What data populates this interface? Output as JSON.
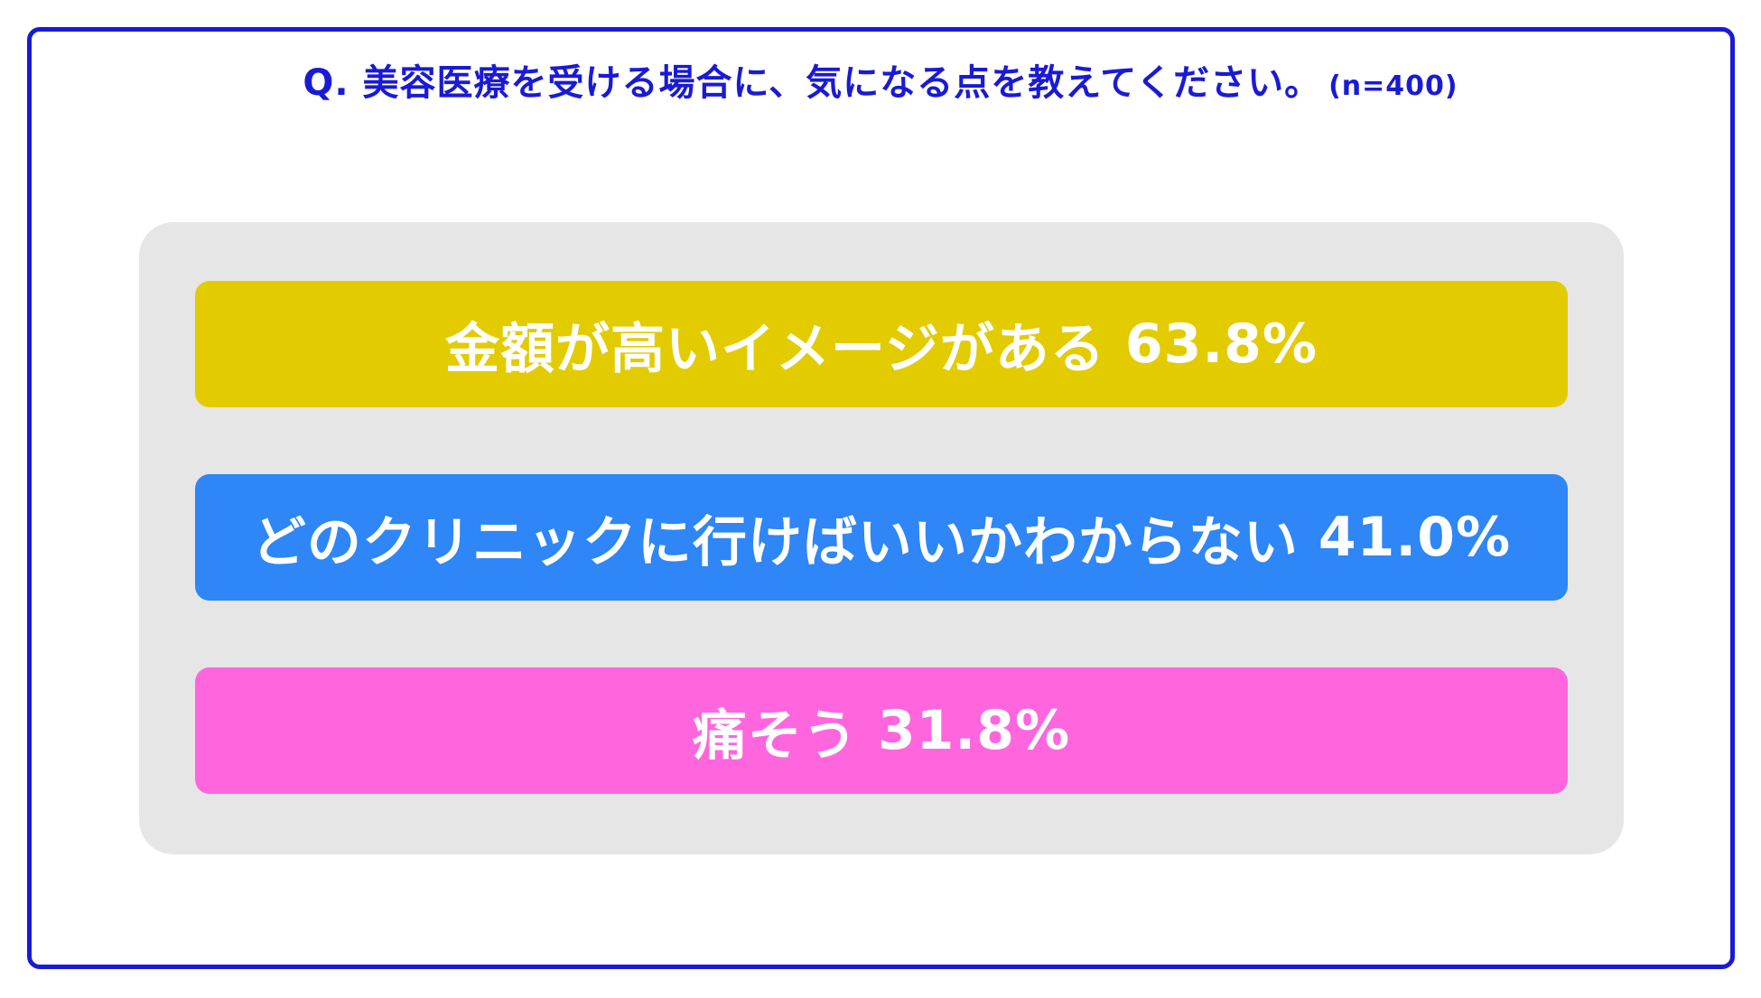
{
  "chart_data": {
    "type": "bar",
    "title": "Q. 美容医療を受ける場合に、気になる点を教えてください。",
    "sample_size": "(n=400)",
    "categories": [
      "金額が高いイメージがある",
      "どのクリニックに行けばいいかわからない",
      "痛そう"
    ],
    "values": [
      63.8,
      41.0,
      31.8
    ],
    "value_labels": [
      "63.8%",
      "41.0%",
      "31.8%"
    ],
    "colors": [
      "#e2cc00",
      "#2e86f7",
      "#ff66dd"
    ],
    "accent_color": "#1a1ad6",
    "panel_color": "#e6e6e6"
  }
}
